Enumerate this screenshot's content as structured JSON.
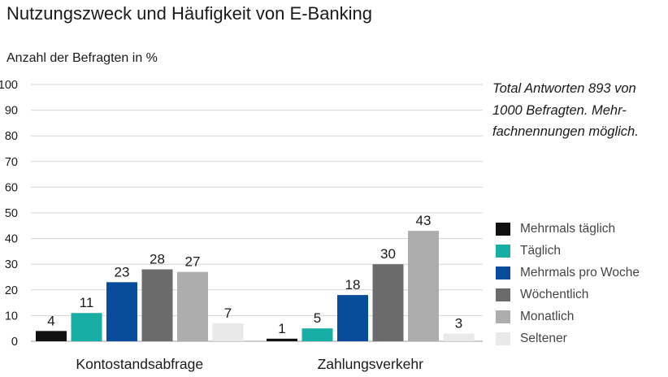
{
  "chart_data": {
    "type": "bar",
    "title": "Nutzungszweck und Häufigkeit von E-Banking",
    "ylabel": "Anzahl der Befragten in %",
    "xlabel": "",
    "ylim": [
      0,
      100
    ],
    "yticks": [
      0,
      10,
      20,
      30,
      40,
      50,
      60,
      70,
      80,
      90,
      100
    ],
    "grid": true,
    "legend_position": "right",
    "categories": [
      "Kontostandsabfrage",
      "Zahlungsverkehr"
    ],
    "series": [
      {
        "name": "Mehrmals täglich",
        "color": "#111111",
        "values": [
          4,
          1
        ]
      },
      {
        "name": "Täglich",
        "color": "#19aea5",
        "values": [
          11,
          5
        ]
      },
      {
        "name": "Mehrmals pro Woche",
        "color": "#0a4c9c",
        "values": [
          23,
          18
        ]
      },
      {
        "name": "Wöchentlich",
        "color": "#6b6b6b",
        "values": [
          28,
          30
        ]
      },
      {
        "name": "Monatlich",
        "color": "#adadad",
        "values": [
          27,
          43
        ]
      },
      {
        "name": "Seltener",
        "color": "#e9e9e9",
        "values": [
          7,
          3
        ]
      }
    ],
    "annotation": "Total Antworten 893 von 1000 Befragten. Mehr-fachnennungen möglich."
  }
}
